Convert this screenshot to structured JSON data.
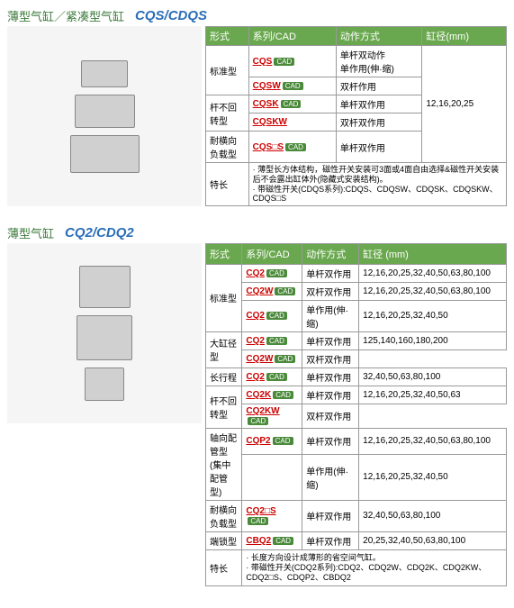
{
  "section1": {
    "title": "薄型气缸／紧凑型气缸",
    "model": "CQS/CDQS",
    "headers": [
      "形式",
      "系列/CAD",
      "动作方式",
      "缸径(mm)"
    ],
    "rows": [
      {
        "form": "标准型",
        "rowspan": 2,
        "model": "CQS",
        "cad": true,
        "action": "单杆双动作\n单作用(伸·缩)",
        "bore": "12,16,20,25",
        "bore_rowspan": 5
      },
      {
        "model": "CQSW",
        "cad": true,
        "action": "双杆作用"
      },
      {
        "form": "杆不回转型",
        "rowspan": 2,
        "model": "CQSK",
        "cad": true,
        "action": "单杆双作用"
      },
      {
        "model": "CQSKW",
        "cad": false,
        "action": "双杆双作用"
      },
      {
        "form": "耐横向负载型",
        "rowspan": 1,
        "model": "CQS□S",
        "cad": true,
        "action": "单杆双作用"
      }
    ],
    "feature_label": "特长",
    "feature_text": "· 薄型长方体结构，磁性开关安装可3面或4面自由选择&磁性开关安装后不会露出缸体外(隐藏式安装结构)。\n· 带磁性开关(CDQS系列):CDQS、CDQSW、CDQSK、CDQSKW、CDQS□S"
  },
  "section2": {
    "title": "薄型气缸",
    "model": "CQ2/CDQ2",
    "headers": [
      "形式",
      "系列/CAD",
      "动作方式",
      "缸径 (mm)"
    ],
    "rows": [
      {
        "form": "标准型",
        "rowspan": 3,
        "model": "CQ2",
        "cad": true,
        "action": "单杆双作用",
        "bore": "12,16,20,25,32,40,50,63,80,100"
      },
      {
        "model": "CQ2W",
        "cad": true,
        "action": "双杆双作用",
        "bore": "12,16,20,25,32,40,50,63,80,100"
      },
      {
        "model": "CQ2",
        "cad": true,
        "action": "单作用(伸·缩)",
        "bore": "12,16,20,25,32,40,50"
      },
      {
        "form": "大缸径型",
        "rowspan": 2,
        "model": "CQ2",
        "cad": true,
        "action": "单杆双作用",
        "bore": "125,140,160,180,200"
      },
      {
        "model": "CQ2W",
        "cad": true,
        "action": "双杆双作用"
      },
      {
        "form": "长行程",
        "rowspan": 1,
        "model": "CQ2",
        "cad": true,
        "action": "单杆双作用",
        "bore": "32,40,50,63,80,100"
      },
      {
        "form": "杆不回转型",
        "rowspan": 2,
        "model": "CQ2K",
        "cad": true,
        "action": "单杆双作用",
        "bore": "12,16,20,25,32,40,50,63"
      },
      {
        "model": "CQ2KW",
        "cad": true,
        "action": "双杆双作用"
      },
      {
        "form": "轴向配管型\n(集中配管型)",
        "rowspan": 2,
        "model": "CQP2",
        "cad": true,
        "action": "单杆双作用",
        "bore": "12,16,20,25,32,40,50,63,80,100"
      },
      {
        "model": "",
        "cad": false,
        "action": "单作用(伸·缩)",
        "bore": "12,16,20,25,32,40,50"
      },
      {
        "form": "耐横向负载型",
        "rowspan": 1,
        "model": "CQ2□S",
        "cad": true,
        "action": "单杆双作用",
        "bore": "32,40,50,63,80,100"
      },
      {
        "form": "端锁型",
        "rowspan": 1,
        "model": "CBQ2",
        "cad": true,
        "action": "单杆双作用",
        "bore": "20,25,32,40,50,63,80,100"
      }
    ],
    "feature_label": "特长",
    "feature_text": "· 长度方向设计成薄形的省空间气缸。\n· 带磁性开关(CDQ2系列):CDQ2、CDQ2W、CDQ2K、CDQ2KW、CDQ2□S、CDQP2、CBDQ2"
  },
  "cad_label": "CAD"
}
